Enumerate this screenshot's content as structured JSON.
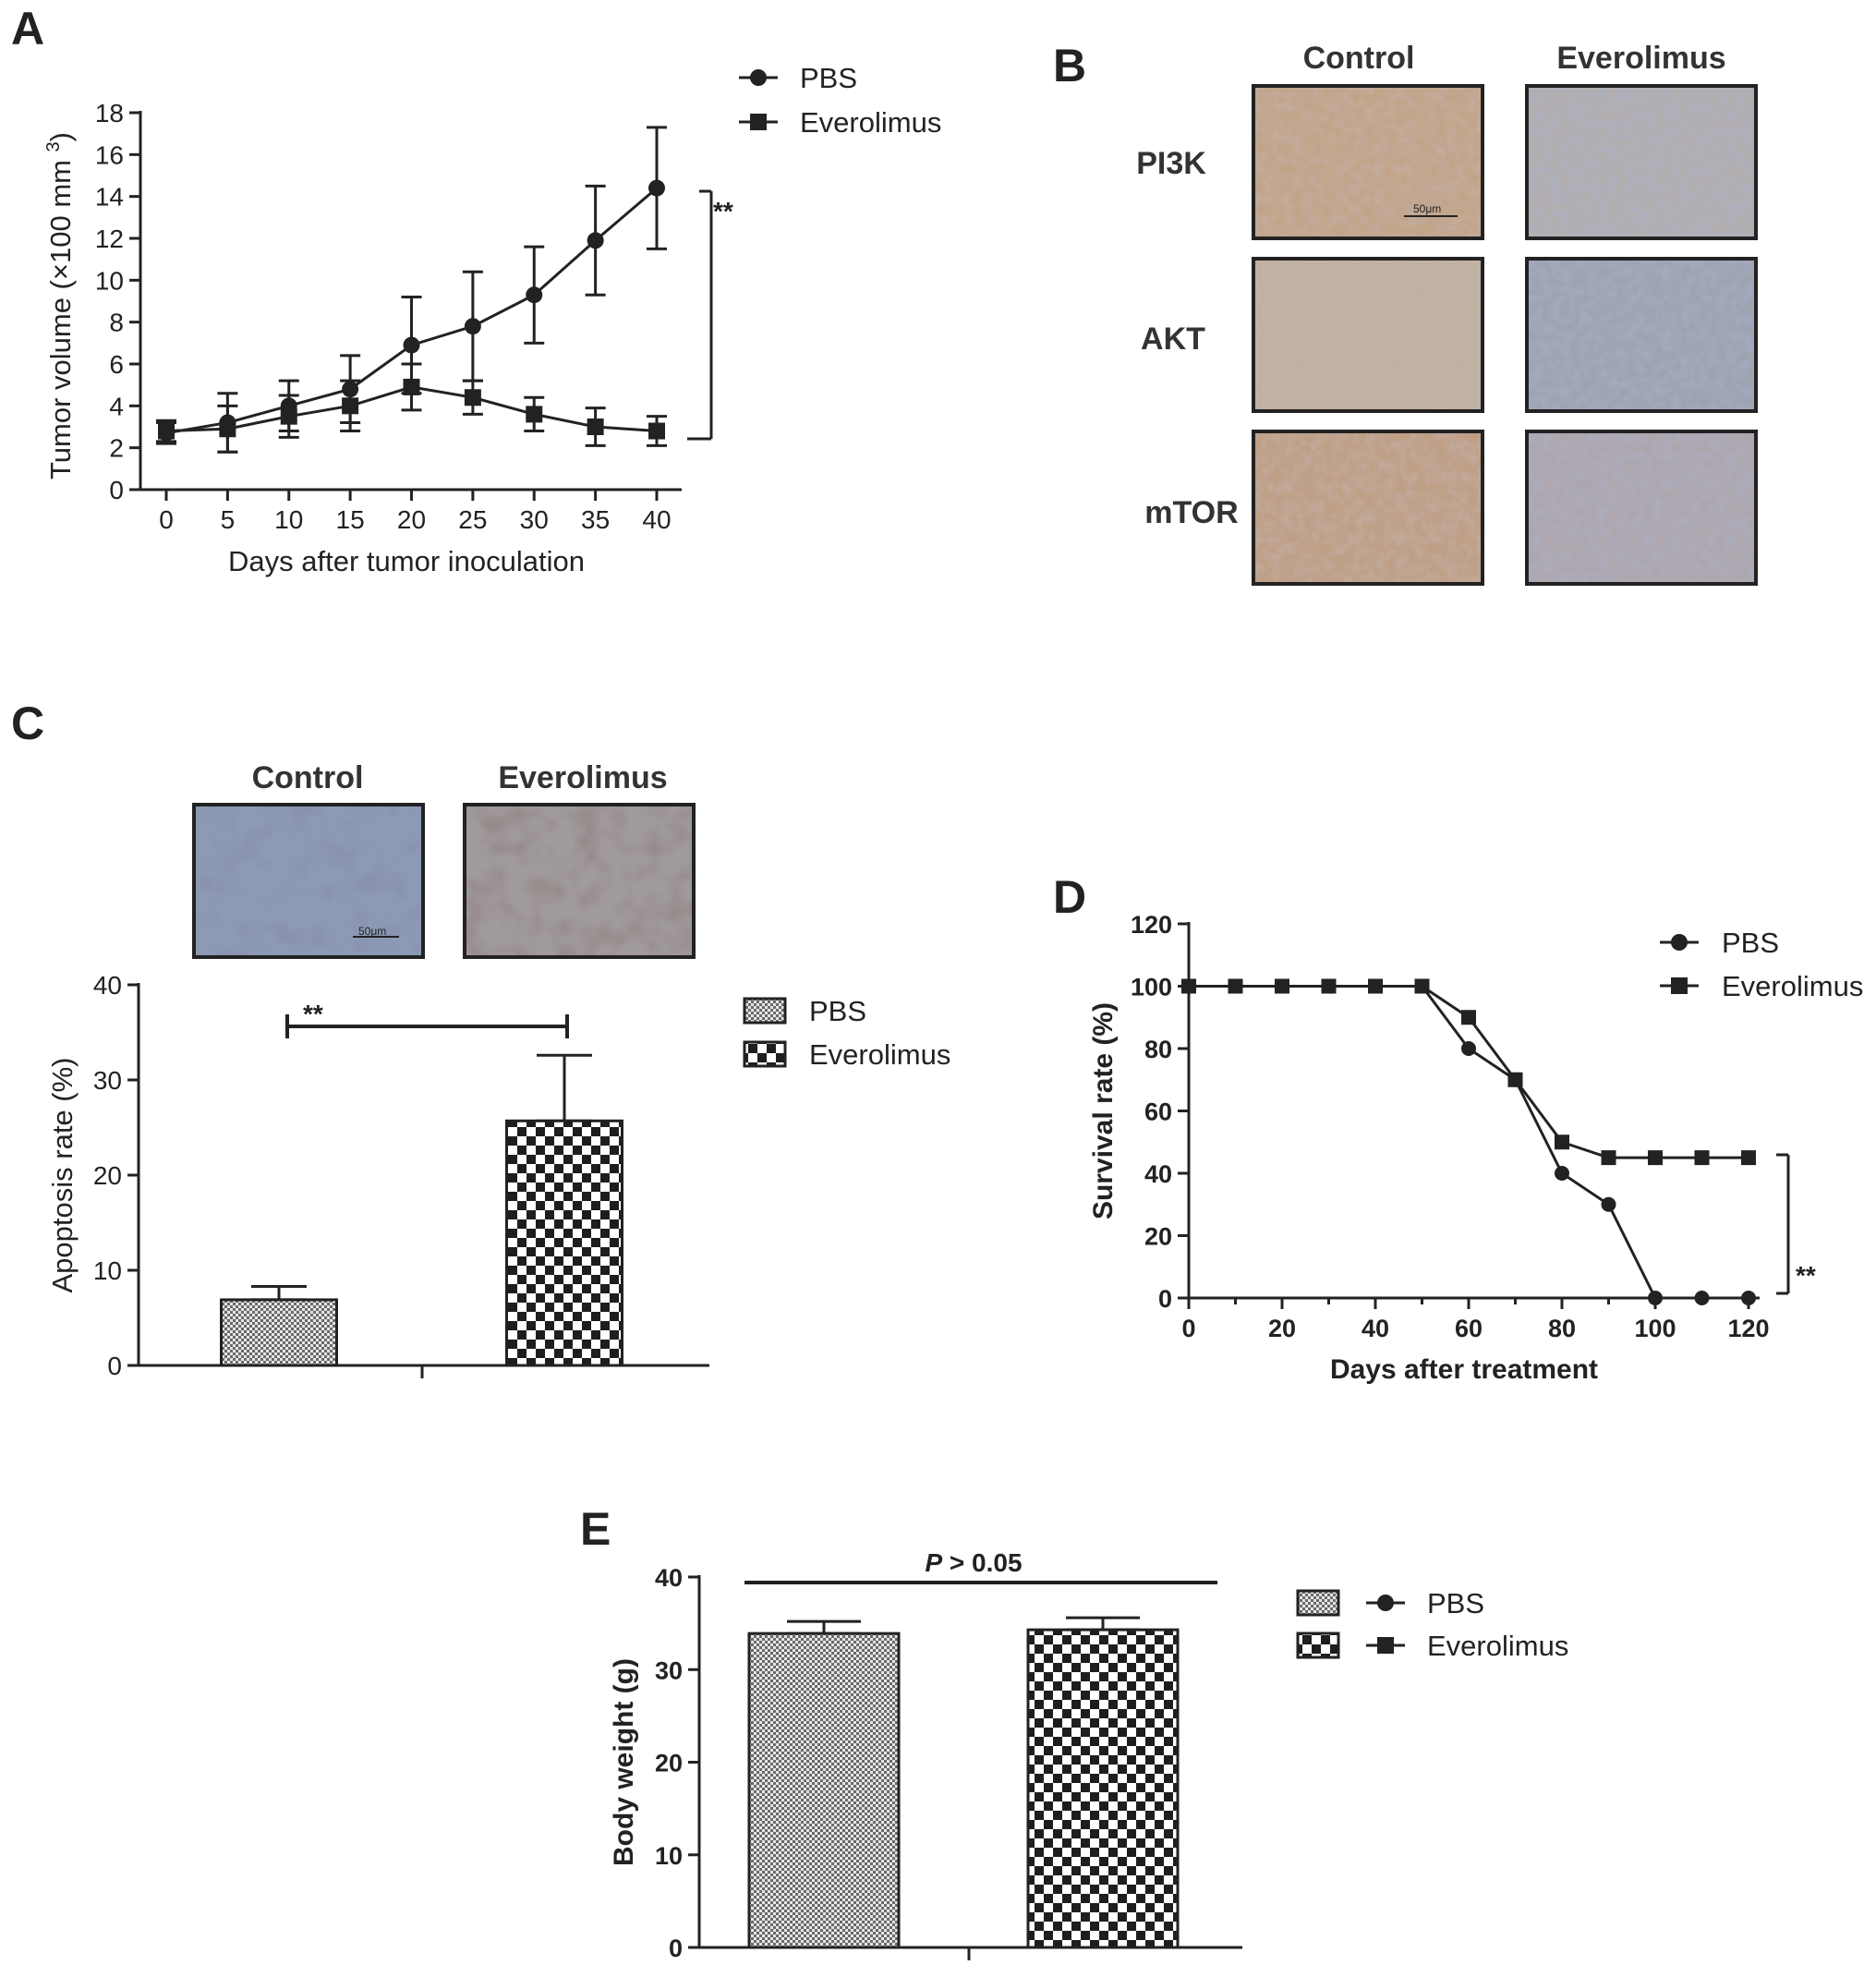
{
  "panels": {
    "A": "A",
    "B": "B",
    "C": "C",
    "D": "D",
    "E": "E"
  },
  "colors": {
    "ink": "#222222",
    "tissue_brown": "#b9a088",
    "tissue_blue": "#8d99ad",
    "tissue_dark": "#5a5a7a"
  },
  "ihc_B": {
    "columns": [
      "Control",
      "Everolimus"
    ],
    "rows": [
      "PI3K",
      "AKT",
      "mTOR"
    ],
    "scale_bar": "50μm"
  },
  "ihc_C": {
    "columns": [
      "Control",
      "Everolimus"
    ],
    "scale_bar": "50μm"
  },
  "chart_data": [
    {
      "panel": "A",
      "type": "line",
      "xlabel": "Days after tumor inoculation",
      "ylabel": "Tumor volume (×100 mm 3)",
      "ylabel_main": "Tumor volume (×100 mm",
      "ylabel_sup": "3",
      "ylabel_end": ")",
      "x": [
        0,
        5,
        10,
        15,
        20,
        25,
        30,
        35,
        40
      ],
      "xlim": [
        0,
        40
      ],
      "ylim": [
        0,
        18
      ],
      "x_ticks": [
        "0",
        "5",
        "10",
        "15",
        "20",
        "25",
        "30",
        "35",
        "40"
      ],
      "y_ticks": [
        "0",
        "2",
        "4",
        "6",
        "8",
        "10",
        "12",
        "14",
        "16",
        "18"
      ],
      "series": [
        {
          "name": "PBS",
          "marker": "circle",
          "values": [
            2.7,
            3.2,
            4.0,
            4.8,
            6.9,
            7.8,
            9.3,
            11.9,
            14.4
          ],
          "errors": [
            0.5,
            1.4,
            1.2,
            1.6,
            2.3,
            2.6,
            2.3,
            2.6,
            2.9
          ]
        },
        {
          "name": "Everolimus",
          "marker": "square",
          "values": [
            2.8,
            2.9,
            3.5,
            4.0,
            4.9,
            4.4,
            3.6,
            3.0,
            2.8
          ],
          "errors": [
            0.5,
            1.1,
            1.0,
            1.2,
            1.1,
            0.8,
            0.8,
            0.9,
            0.7
          ]
        }
      ],
      "significance": "**",
      "legend": "top-right"
    },
    {
      "panel": "C",
      "type": "bar",
      "ylabel": "Apoptosis rate (%)",
      "ylim": [
        0,
        40
      ],
      "y_ticks": [
        "0",
        "10",
        "20",
        "30",
        "40"
      ],
      "categories": [
        "PBS",
        "Everolimus"
      ],
      "values": [
        6.9,
        25.7
      ],
      "errors": [
        1.4,
        6.9
      ],
      "patterns": [
        "fine-check",
        "coarse-check"
      ],
      "significance": "**",
      "legend": "right"
    },
    {
      "panel": "D",
      "type": "line",
      "xlabel": "Days after treatment",
      "ylabel": "Survival rate (%)",
      "x": [
        0,
        10,
        20,
        30,
        40,
        50,
        60,
        70,
        80,
        90,
        100,
        110,
        120
      ],
      "xlim": [
        0,
        120
      ],
      "ylim": [
        0,
        120
      ],
      "x_ticks": [
        "0",
        "20",
        "40",
        "60",
        "80",
        "100",
        "120"
      ],
      "y_ticks": [
        "0",
        "20",
        "40",
        "60",
        "80",
        "100",
        "120"
      ],
      "series": [
        {
          "name": "PBS",
          "marker": "circle",
          "values": [
            100,
            100,
            100,
            100,
            100,
            100,
            80,
            70,
            40,
            30,
            0,
            0,
            0
          ]
        },
        {
          "name": "Everolimus",
          "marker": "square",
          "values": [
            100,
            100,
            100,
            100,
            100,
            100,
            90,
            70,
            50,
            45,
            45,
            45,
            45
          ]
        }
      ],
      "significance": "**",
      "legend": "top-right"
    },
    {
      "panel": "E",
      "type": "bar",
      "ylabel": "Body weight (g)",
      "ylim": [
        0,
        40
      ],
      "y_ticks": [
        "0",
        "10",
        "20",
        "30",
        "40"
      ],
      "categories": [
        "PBS",
        "Everolimus"
      ],
      "values": [
        33.9,
        34.3
      ],
      "errors": [
        1.3,
        1.3
      ],
      "patterns": [
        "fine-check",
        "coarse-check"
      ],
      "significance_p": "P",
      "significance_rest": " > 0.05",
      "legend": "right"
    }
  ]
}
